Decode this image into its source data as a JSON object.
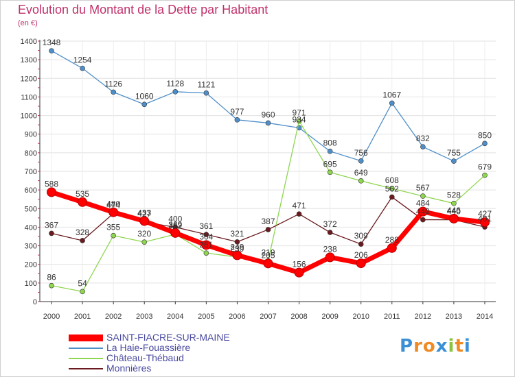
{
  "chart_data": {
    "type": "line",
    "title": "Evolution du Montant de la Dette par Habitant",
    "unit_label": "(en €)",
    "x": [
      "2000",
      "2001",
      "2002",
      "2003",
      "2004",
      "2005",
      "2006",
      "2007",
      "2008",
      "2009",
      "2010",
      "2011",
      "2012",
      "2013",
      "2014"
    ],
    "ylim": [
      0,
      1400
    ],
    "yticks": [
      0,
      100,
      200,
      300,
      400,
      500,
      600,
      700,
      800,
      900,
      1000,
      1100,
      1200,
      1300,
      1400
    ],
    "grid": true,
    "legend_position": "bottom-left",
    "series": [
      {
        "name": "SAINT-FIACRE-SUR-MAINE",
        "color": "#ff0000",
        "values": [
          588,
          535,
          480,
          433,
          369,
          304,
          249,
          205,
          156,
          238,
          206,
          288,
          484,
          446,
          427
        ]
      },
      {
        "name": "La Haie-Fouassière",
        "color": "#4f8fc9",
        "values": [
          1348,
          1254,
          1126,
          1060,
          1128,
          1121,
          977,
          960,
          934,
          808,
          756,
          1067,
          832,
          755,
          850
        ]
      },
      {
        "name": "Château-Thébaud",
        "color": "#8ed64f",
        "values": [
          86,
          54,
          355,
          320,
          362,
          261,
          239,
          219,
          971,
          695,
          649,
          608,
          567,
          528,
          679
        ]
      },
      {
        "name": "Monnières",
        "color": "#6b1a1f",
        "values": [
          367,
          328,
          474,
          427,
          400,
          361,
          321,
          387,
          471,
          372,
          309,
          562,
          440,
          440,
          401
        ]
      }
    ]
  },
  "logo": {
    "letters": [
      "P",
      "r",
      "o",
      "x",
      "i",
      "t",
      "i"
    ],
    "colors": [
      "#3a8fd6",
      "#f08a24",
      "#f08a24",
      "#3a8fd6",
      "#8ac43f",
      "#f08a24",
      "#3a8fd6"
    ]
  }
}
